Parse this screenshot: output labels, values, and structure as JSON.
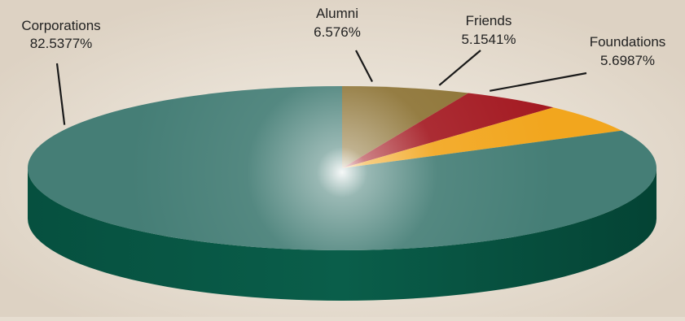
{
  "chart_data": {
    "type": "pie",
    "title": "",
    "style": "3d-tilted",
    "slices": [
      {
        "label": "Corporations",
        "value": 82.5377,
        "value_text": "82.5377%",
        "color": "#457e76"
      },
      {
        "label": "Alumni",
        "value": 6.576,
        "value_text": "6.576%",
        "color": "#8c7233"
      },
      {
        "label": "Friends",
        "value": 5.1541,
        "value_text": "5.1541%",
        "color": "#a41a22"
      },
      {
        "label": "Foundations",
        "value": 5.6987,
        "value_text": "5.6987%",
        "color": "#f2a61e"
      }
    ],
    "side_color": "#04503f",
    "background": "#e6ddd0"
  }
}
